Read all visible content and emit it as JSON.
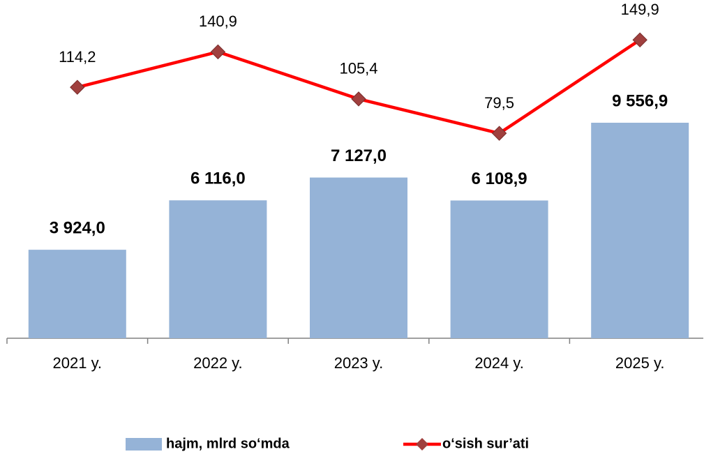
{
  "chart_data": {
    "type": "bar_line",
    "categories": [
      "2021 y.",
      "2022 y.",
      "2023 y.",
      "2024 y.",
      "2025 y."
    ],
    "series": [
      {
        "name": "hajm, mlrd so‘mda",
        "type": "bar",
        "color": "#95b3d7",
        "values": [
          3924.0,
          6116.0,
          7127.0,
          6108.9,
          9556.9
        ],
        "value_labels": [
          "3 924,0",
          "6 116,0",
          "7 127,0",
          "6 108,9",
          "9 556,9"
        ]
      },
      {
        "name": "o‘sish sur’ati",
        "type": "line",
        "axis": "y2",
        "color": "#ff0000",
        "marker_color": "#a0403e",
        "values": [
          114.2,
          140.9,
          105.4,
          79.5,
          149.9
        ],
        "value_labels": [
          "114,2",
          "140,9",
          "105,4",
          "79,5",
          "149,9"
        ]
      }
    ],
    "ylim": [
      0,
      15000
    ],
    "y2lim": [
      -75,
      180
    ],
    "legend": "bottom"
  }
}
